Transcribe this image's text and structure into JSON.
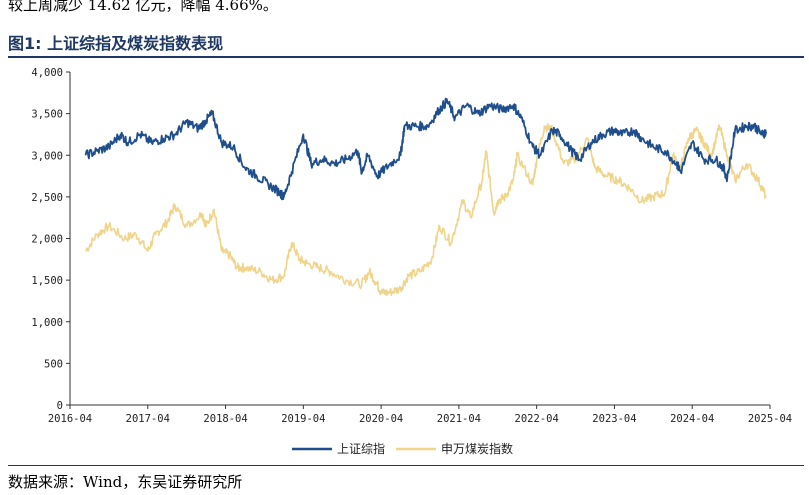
{
  "header_text": "较上周减少 14.62 亿元，降幅 4.66%。",
  "figure_title": "图1:  上证综指及煤炭指数表现",
  "source_text": "数据来源：Wind，东吴证券研究所",
  "colors": {
    "series1": "#1f4e8c",
    "series2": "#f0d48a",
    "title": "#1f3864"
  },
  "chart_data": {
    "type": "line",
    "title": "上证综指及煤炭指数表现",
    "xlabel": "",
    "ylabel": "",
    "ylim": [
      0,
      4000
    ],
    "yticks": [
      0,
      500,
      1000,
      1500,
      2000,
      2500,
      3000,
      3500,
      4000
    ],
    "ytick_labels": [
      "0",
      "500",
      "1,000",
      "1,500",
      "2,000",
      "2,500",
      "3,000",
      "3,500",
      "4,000"
    ],
    "xlim": [
      2016.25,
      2025.25
    ],
    "xticks": [
      2016.25,
      2017.25,
      2018.25,
      2019.25,
      2020.25,
      2021.25,
      2022.25,
      2023.25,
      2024.25,
      2025.25
    ],
    "xtick_labels": [
      "2016-04",
      "2017-04",
      "2018-04",
      "2019-04",
      "2020-04",
      "2021-04",
      "2022-04",
      "2023-04",
      "2024-04",
      "2025-04"
    ],
    "grid": false,
    "legend_position": "bottom-center",
    "series": [
      {
        "name": "上证综指",
        "x": [
          2016.45,
          2016.6,
          2016.75,
          2016.9,
          2017.0,
          2017.15,
          2017.3,
          2017.45,
          2017.6,
          2017.75,
          2017.9,
          2018.0,
          2018.08,
          2018.2,
          2018.35,
          2018.5,
          2018.65,
          2018.8,
          2018.95,
          2019.0,
          2019.1,
          2019.25,
          2019.35,
          2019.5,
          2019.65,
          2019.8,
          2019.95,
          2020.0,
          2020.08,
          2020.2,
          2020.35,
          2020.5,
          2020.55,
          2020.7,
          2020.85,
          2021.0,
          2021.1,
          2021.2,
          2021.35,
          2021.5,
          2021.65,
          2021.8,
          2021.95,
          2022.05,
          2022.2,
          2022.3,
          2022.45,
          2022.55,
          2022.7,
          2022.8,
          2022.95,
          2023.1,
          2023.25,
          2023.35,
          2023.5,
          2023.6,
          2023.75,
          2023.9,
          2024.05,
          2024.1,
          2024.25,
          2024.4,
          2024.55,
          2024.65,
          2024.7,
          2024.8,
          2024.95,
          2025.05,
          2025.15,
          2025.2
        ],
        "values": [
          3000,
          3050,
          3100,
          3250,
          3150,
          3250,
          3150,
          3200,
          3250,
          3400,
          3320,
          3420,
          3500,
          3150,
          3100,
          2850,
          2750,
          2650,
          2550,
          2500,
          2800,
          3250,
          2900,
          2950,
          2900,
          2950,
          3050,
          2800,
          3000,
          2750,
          2880,
          3000,
          3350,
          3350,
          3350,
          3550,
          3650,
          3450,
          3600,
          3500,
          3600,
          3550,
          3600,
          3450,
          3100,
          3000,
          3300,
          3250,
          3050,
          2950,
          3150,
          3250,
          3300,
          3250,
          3300,
          3200,
          3100,
          3050,
          2900,
          2800,
          3150,
          2950,
          2950,
          2850,
          2720,
          3300,
          3350,
          3350,
          3250,
          3280
        ]
      },
      {
        "name": "申万煤炭指数",
        "x": [
          2016.45,
          2016.6,
          2016.75,
          2016.95,
          2017.1,
          2017.25,
          2017.35,
          2017.5,
          2017.6,
          2017.75,
          2017.95,
          2018.0,
          2018.1,
          2018.2,
          2018.3,
          2018.4,
          2018.5,
          2018.7,
          2018.85,
          2019.0,
          2019.1,
          2019.2,
          2019.3,
          2019.45,
          2019.6,
          2019.8,
          2020.0,
          2020.1,
          2020.2,
          2020.25,
          2020.35,
          2020.5,
          2020.6,
          2020.75,
          2020.9,
          2021.0,
          2021.15,
          2021.3,
          2021.4,
          2021.55,
          2021.6,
          2021.7,
          2021.75,
          2021.85,
          2021.95,
          2022.0,
          2022.2,
          2022.25,
          2022.35,
          2022.45,
          2022.6,
          2022.75,
          2022.9,
          2023.0,
          2023.15,
          2023.3,
          2023.45,
          2023.6,
          2023.75,
          2023.9,
          2024.0,
          2024.1,
          2024.2,
          2024.3,
          2024.4,
          2024.5,
          2024.6,
          2024.7,
          2024.8,
          2024.95,
          2025.1,
          2025.2
        ],
        "values": [
          1850,
          2050,
          2150,
          2000,
          2050,
          1850,
          2050,
          2200,
          2400,
          2150,
          2300,
          2150,
          2350,
          1850,
          1800,
          1650,
          1650,
          1600,
          1500,
          1550,
          1950,
          1750,
          1700,
          1650,
          1600,
          1500,
          1450,
          1600,
          1450,
          1350,
          1350,
          1400,
          1550,
          1600,
          1750,
          2150,
          1950,
          2450,
          2250,
          2700,
          3050,
          2300,
          2450,
          2500,
          2700,
          3000,
          2650,
          2950,
          3350,
          3300,
          2900,
          2950,
          3200,
          2850,
          2750,
          2700,
          2600,
          2450,
          2500,
          2550,
          3000,
          2850,
          3200,
          3300,
          3150,
          3000,
          3350,
          3000,
          2700,
          2900,
          2700,
          2500
        ]
      }
    ]
  }
}
